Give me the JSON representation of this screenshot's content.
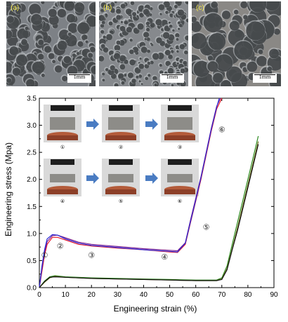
{
  "micrographs": [
    {
      "label": "(a)",
      "scale": "1mm"
    },
    {
      "label": "(b)",
      "scale": "1mm"
    },
    {
      "label": "(c)",
      "scale": "1mm"
    }
  ],
  "inset_photos": {
    "numbers": [
      "①",
      "②",
      "③",
      "④",
      "⑤",
      "⑥"
    ]
  },
  "colors": {
    "red": "#e8182a",
    "purple": "#7a1f8f",
    "blue": "#2a2ad6",
    "green": "#2e8b22",
    "olive": "#6b6b16",
    "black": "#111111",
    "arrow": "#4a7cc2"
  },
  "chart_data": {
    "type": "line",
    "xlabel": "Engineering strain (%)",
    "ylabel": "Engineering stress (Mpa)",
    "xlim": [
      0,
      90
    ],
    "ylim": [
      0,
      3.5
    ],
    "xticks": [
      "0",
      "10",
      "20",
      "30",
      "40",
      "50",
      "60",
      "70",
      "80",
      "90"
    ],
    "yticks": [
      "0.0",
      "0.5",
      "1.0",
      "1.5",
      "2.0",
      "2.5",
      "3.0",
      "3.5"
    ],
    "grid": false,
    "stage_markers": [
      {
        "text": "①",
        "x": 2,
        "y": 0.55
      },
      {
        "text": "②",
        "x": 8,
        "y": 0.72
      },
      {
        "text": "③",
        "x": 20,
        "y": 0.55
      },
      {
        "text": "④",
        "x": 48,
        "y": 0.52
      },
      {
        "text": "⑤",
        "x": 64,
        "y": 1.07
      },
      {
        "text": "⑥",
        "x": 70,
        "y": 2.87
      }
    ],
    "series": [
      {
        "color": "red",
        "x": [
          0,
          1,
          2,
          3,
          5,
          7,
          10,
          15,
          20,
          30,
          40,
          50,
          53,
          56,
          58,
          60,
          62,
          64,
          66,
          68,
          70
        ],
        "y": [
          0,
          0.3,
          0.6,
          0.8,
          0.93,
          0.93,
          0.88,
          0.8,
          0.77,
          0.73,
          0.7,
          0.66,
          0.65,
          0.8,
          1.2,
          1.6,
          2.0,
          2.45,
          2.9,
          3.3,
          3.5
        ]
      },
      {
        "color": "purple",
        "x": [
          0,
          1,
          2,
          3,
          5,
          7,
          10,
          15,
          20,
          30,
          40,
          50,
          53,
          56,
          58,
          60,
          62,
          64,
          66,
          68,
          69.5
        ],
        "y": [
          0,
          0.35,
          0.65,
          0.85,
          0.96,
          0.97,
          0.92,
          0.84,
          0.8,
          0.76,
          0.72,
          0.69,
          0.68,
          0.83,
          1.25,
          1.65,
          2.05,
          2.5,
          2.95,
          3.35,
          3.5
        ]
      },
      {
        "color": "blue",
        "x": [
          0,
          1,
          2,
          3,
          5,
          7,
          10,
          15,
          20,
          30,
          40,
          50,
          53,
          56,
          58,
          60,
          62,
          64,
          66,
          68,
          69
        ],
        "y": [
          0,
          0.4,
          0.7,
          0.9,
          0.98,
          0.97,
          0.9,
          0.82,
          0.78,
          0.74,
          0.7,
          0.67,
          0.66,
          0.82,
          1.22,
          1.62,
          2.03,
          2.48,
          2.93,
          3.33,
          3.5
        ]
      },
      {
        "color": "green",
        "x": [
          0,
          2,
          4,
          6,
          10,
          20,
          30,
          40,
          50,
          60,
          68,
          70,
          72,
          74,
          76,
          78,
          80,
          82,
          84
        ],
        "y": [
          0,
          0.12,
          0.2,
          0.22,
          0.2,
          0.18,
          0.17,
          0.16,
          0.15,
          0.14,
          0.14,
          0.18,
          0.4,
          0.8,
          1.2,
          1.6,
          2.0,
          2.4,
          2.8
        ]
      },
      {
        "color": "olive",
        "x": [
          0,
          2,
          4,
          6,
          10,
          20,
          30,
          40,
          50,
          60,
          68,
          70,
          72,
          74,
          76,
          78,
          80,
          82,
          84
        ],
        "y": [
          0,
          0.1,
          0.18,
          0.21,
          0.19,
          0.17,
          0.16,
          0.15,
          0.14,
          0.13,
          0.13,
          0.16,
          0.35,
          0.72,
          1.1,
          1.5,
          1.9,
          2.3,
          2.7
        ]
      },
      {
        "color": "black",
        "x": [
          0,
          2,
          4,
          6,
          10,
          20,
          30,
          40,
          50,
          60,
          68,
          70,
          72,
          74,
          76,
          78,
          80,
          82,
          84
        ],
        "y": [
          0,
          0.11,
          0.19,
          0.2,
          0.19,
          0.17,
          0.16,
          0.15,
          0.14,
          0.13,
          0.13,
          0.15,
          0.33,
          0.7,
          1.05,
          1.45,
          1.85,
          2.25,
          2.65
        ]
      }
    ]
  }
}
